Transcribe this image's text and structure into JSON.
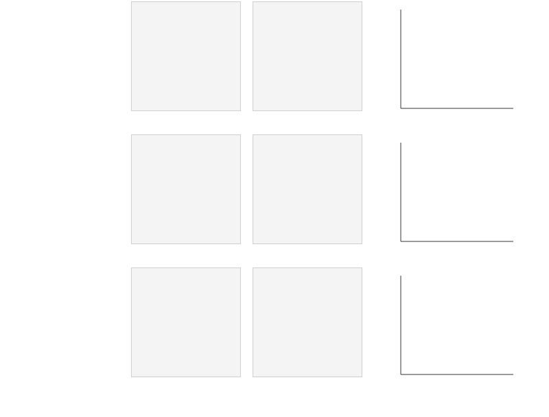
{
  "title": "",
  "subtitle": "",
  "columns": {
    "a": "",
    "b": "",
    "c": ""
  },
  "rows": [
    {
      "label": ""
    },
    {
      "label": ""
    },
    {
      "label": ""
    }
  ],
  "chart_data": [
    {
      "type": "line",
      "title": "",
      "xlabel": "",
      "ylabel": "",
      "xlim": [
        null,
        null
      ],
      "ylim": [
        null,
        null
      ],
      "x": [],
      "series": [
        {
          "name": "",
          "values": []
        }
      ]
    },
    {
      "type": "line",
      "title": "",
      "xlabel": "",
      "ylabel": "",
      "xlim": [
        null,
        null
      ],
      "ylim": [
        null,
        null
      ],
      "x": [],
      "series": [
        {
          "name": "",
          "values": []
        }
      ]
    },
    {
      "type": "line",
      "title": "",
      "xlabel": "",
      "ylabel": "",
      "xlim": [
        null,
        null
      ],
      "ylim": [
        null,
        null
      ],
      "x": [],
      "series": [
        {
          "name": "",
          "values": []
        }
      ]
    }
  ]
}
